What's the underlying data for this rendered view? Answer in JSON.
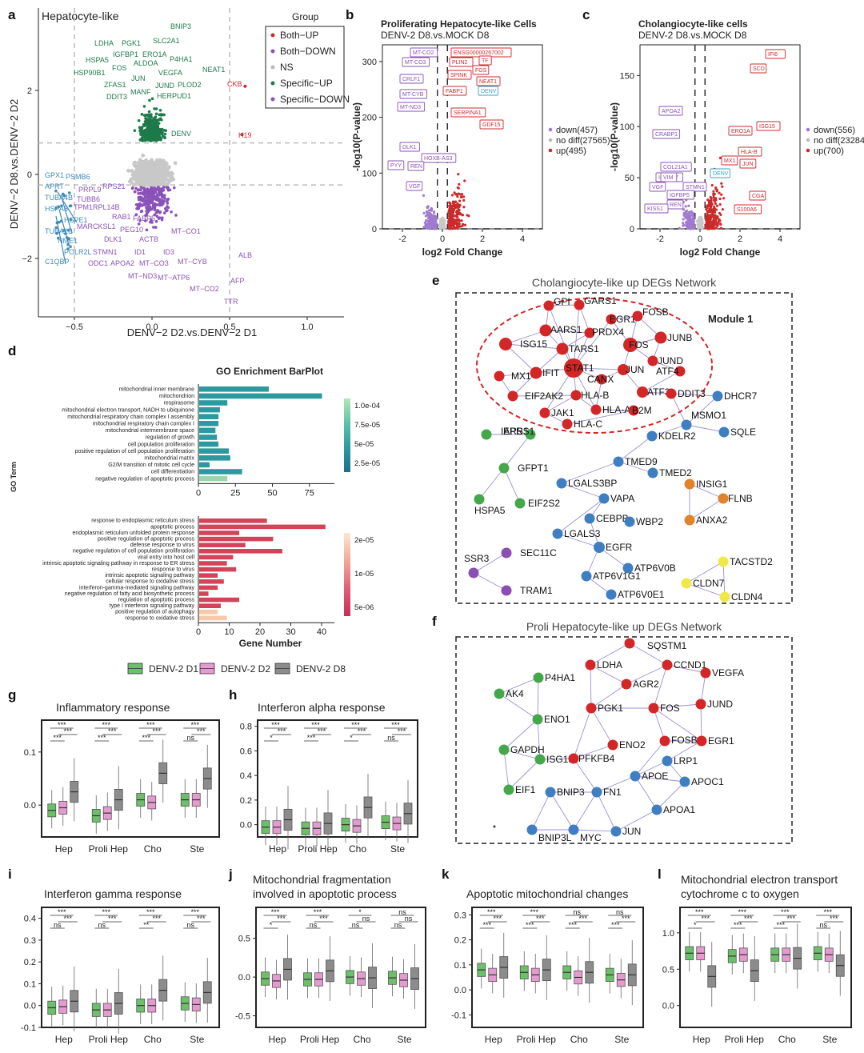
{
  "panel_letters": [
    "a",
    "b",
    "c",
    "d",
    "e",
    "f",
    "g",
    "h",
    "i",
    "j",
    "k",
    "l"
  ],
  "colors": {
    "up": "#cc2a2a",
    "down": "#8a52b8",
    "green": "#1d7a4a",
    "blue": "#3d8ab8",
    "grey": "#c8c8c8",
    "purple_node": "#8a4fb0",
    "green_node": "#44a74a",
    "blue_node": "#3f7fc1",
    "orange_node": "#e0832a",
    "yellow_node": "#f0e84a",
    "red_node": "#d32626",
    "teal": "#2a9aa0",
    "crimson": "#d3445a",
    "box_d1": "#6cc06a",
    "box_d2": "#e59ad0",
    "box_d8": "#8c8c8c"
  },
  "panel_a": {
    "title": "Hepatocyte-like",
    "xlabel": "DENV−2 D2.vs.DENV−2 D1",
    "ylabel": "DENV−2 D8.vs.DENV−2 D2",
    "xticks": [
      "−0.5",
      "0.0",
      "0.5",
      "1.0"
    ],
    "yticks": [
      "2",
      "0",
      "−2"
    ],
    "legend_title": "Group",
    "legend": [
      "Both−UP",
      "Both−DOWN",
      "NS",
      "Specific−UP",
      "Specific−DOWN"
    ],
    "labels_green": [
      "BNIP3",
      "LDHA",
      "PGK1",
      "SLC2A1",
      "IGFBP1",
      "ERO1A",
      "HSPA5",
      "P4HA1",
      "ALDOA",
      "HSP90B1",
      "FOS",
      "VEGFA",
      "NEAT1",
      "JUN",
      "JUND",
      "PLOD2",
      "ZFAS1",
      "DDIT3",
      "MANF",
      "HERPUD1",
      "DENV"
    ],
    "labels_red": [
      "CKB",
      "H19"
    ],
    "labels_blue": [
      "GPX1",
      "PSMB6",
      "APRT",
      "TUBA4B",
      "HSPA8",
      "HSPE1",
      "TUBA1B",
      "NME1",
      "C1QBP",
      "POLR2L"
    ],
    "labels_purple": [
      "PRPL9",
      "RPS21",
      "TUBB6",
      "TPM1",
      "RPL14B",
      "RAB1",
      "FABP5",
      "MARCKSL1",
      "PEG10",
      "DLK1",
      "STMN1",
      "ACTB",
      "ODC1",
      "APOA2",
      "ID1",
      "ID3",
      "MT−CO1",
      "MT−CO3",
      "MT−CYB",
      "MT−ND3",
      "MT−ATP6",
      "MT−CO2",
      "ALB",
      "AFP",
      "TTR"
    ]
  },
  "panel_b": {
    "title1": "Proliferating Hepatocyte-like Cells",
    "title2": "DENV-2 D8.vs.MOCK D8",
    "xlabel": "log2 Fold Change",
    "ylabel": "-log10(P-value)",
    "xticks": [
      "-2",
      "0",
      "2",
      "4"
    ],
    "yticks": [
      "0",
      "100",
      "200",
      "300"
    ],
    "legend": [
      "down(457)",
      "no diff(27565)",
      "up(495)"
    ],
    "labels_up": [
      "ENSG00000267002",
      "PLIN2",
      "TF",
      "SPINK",
      "FOS",
      "NEAT1",
      "FABP1",
      "SERPINA1",
      "GDF15"
    ],
    "labels_down": [
      "MT-CO2",
      "MT-CO3",
      "CRLF1",
      "MT-CYB",
      "MT-ND3",
      "DLK1",
      "HOXB-AS3",
      "PYY",
      "REN",
      "VGF"
    ],
    "labels_other": [
      "DENV"
    ]
  },
  "panel_c": {
    "title1": "Cholangiocyte-like cells",
    "title2": "DENV-2 D8.vs.MOCK D8",
    "xlabel": "log2 Fold Change",
    "ylabel": "-log10(P-value)",
    "xticks": [
      "-2",
      "0",
      "2",
      "4"
    ],
    "yticks": [
      "0",
      "50",
      "100",
      "150"
    ],
    "legend": [
      "down(556)",
      "no diff(23284)",
      "up(700)"
    ],
    "labels_up": [
      "IFI6",
      "SCD",
      "ERO1A",
      "ISG15",
      "HLA-B",
      "MX1",
      "JUN",
      "CGA",
      "S100A6"
    ],
    "labels_down": [
      "APOA2",
      "CRABP1",
      "COL21A1",
      "IGFBP7",
      "VIM",
      "VGF",
      "STMN1",
      "IGFBP5",
      "REN",
      "KISS1"
    ],
    "labels_other": [
      "DENV"
    ]
  },
  "panel_d": {
    "title": "GO Enrichment BarPlot",
    "ylabel": "GO Term",
    "xlabel": "Gene Number",
    "chart_data": [
      {
        "type": "bar",
        "orientation": "horizontal",
        "title": "GO Enrichment BarPlot",
        "xlabel": "",
        "ylabel": "GO Term",
        "xlim": [
          0,
          85
        ],
        "xticks": [
          "0",
          "25",
          "50",
          "75"
        ],
        "categories": [
          "mitochondrial inner membrane",
          "mitochondrion",
          "respirasome",
          "mitochondrial electron transport, NADH to ubiquinone",
          "mitochondrial respiratory chain complex I assembly",
          "mitochondrial respiratory chain complex I",
          "mitochondrial intermembrane space",
          "regulation of growth",
          "cell population proliferation",
          "positive regulation of cell population proliferation",
          "mitochondrial matrix",
          "G2/M transition of mitotic cell cycle",
          "cell differentiation",
          "negative regulation of apoptotic process"
        ],
        "values": [
          47,
          83,
          19,
          14,
          13,
          13,
          11,
          12,
          13,
          20,
          21,
          7,
          29,
          19
        ],
        "colorbar_ticks": [
          "1.0e-04",
          "7.5e-05",
          "5e-05",
          "2.5e-05"
        ]
      },
      {
        "type": "bar",
        "orientation": "horizontal",
        "xlabel": "Gene Number",
        "ylabel": "GO Term",
        "xlim": [
          0,
          45
        ],
        "xticks": [
          "0",
          "10",
          "20",
          "30",
          "40"
        ],
        "categories": [
          "response to endoplasmic reticulum stress",
          "apoptotic process",
          "endoplasmic reticulum unfolded protein response",
          "positive regulation of apoptotic process",
          "defense response to virus",
          "negative regulation of cell population proliferation",
          "viral entry into host cell",
          "intrinsic apoptotic signaling pathway in response to ER stress",
          "response to virus",
          "intrinsic apoptotic signaling pathway",
          "cellular response to oxidative stress",
          "interferon-gamma-mediated signaling pathway",
          "negative regulation of fatty acid biosynthetic process",
          "regulation of apoptotic process",
          "type I interferon signaling pathway",
          "positive regulation of autophagy",
          "response to oxidative stress"
        ],
        "values": [
          22,
          41,
          13,
          24,
          15,
          27,
          11,
          9,
          12,
          6,
          8,
          6,
          3,
          13,
          7,
          6,
          9
        ],
        "colorbar_ticks": [
          "2e-05",
          "1e-05",
          "5e-06"
        ]
      }
    ]
  },
  "panel_e": {
    "title": "Cholangiocyte-like up DEGs Network",
    "module": "Module 1",
    "nodes": [
      "GPI",
      "GARS1",
      "EGR1",
      "FOSB",
      "AARS1",
      "PRDX4",
      "JUNB",
      "ISG15",
      "TARS1",
      "FOS",
      "JUND",
      "MX1",
      "IFIT",
      "STAT1",
      "JUN",
      "ATF4",
      "CANX",
      "EIF2AK2",
      "HLA-B",
      "ATF3",
      "DDIT3",
      "JAK1",
      "HLA-A",
      "B2M",
      "HLA-C",
      "DHCR7",
      "MSMO1",
      "IARS1",
      "EPRS1",
      "KDELR2",
      "SQLE",
      "GFPT1",
      "TMED9",
      "TMED2",
      "HSPA5",
      "EIF2S2",
      "LGALS3BP",
      "INSIG1",
      "FLNB",
      "VAPA",
      "CEBPB",
      "WBP2",
      "ANXA2",
      "LGALS3",
      "EGFR",
      "SSR3",
      "SEC11C",
      "ATP6V0B",
      "TACSTD2",
      "ATP6V1G1",
      "TRAM1",
      "ATP6V0E1",
      "CLDN7",
      "CLDN4"
    ]
  },
  "panel_f": {
    "title": "Proli Hepatocyte-like up DEGs Network",
    "nodes": [
      "SQSTM1",
      "LDHA",
      "CCND1",
      "VEGFA",
      "P4HA1",
      "AGR2",
      "AK4",
      "PGK1",
      "FOS",
      "JUND",
      "ENO1",
      "GAPDH",
      "ISG15",
      "PFKFB4",
      "ENO2",
      "FOSB",
      "EGR1",
      "LRP1",
      "APOE",
      "APOC1",
      "EIF1",
      "BNIP3",
      "FN1",
      "APOA1",
      "BNIP3L",
      "MYC",
      "JUN"
    ]
  },
  "legend_boxes": [
    "DENV-2 D1",
    "DENV-2 D2",
    "DENV-2 D8"
  ],
  "box_panels": [
    {
      "letter": "g",
      "title": [
        "Inflammatory response"
      ],
      "yticks": [
        "0.1",
        "0.0"
      ],
      "categories": [
        "Hep",
        "Proli Hep",
        "Cho",
        "Ste"
      ],
      "chart_data": {
        "type": "box",
        "title": "Inflammatory response",
        "categories": [
          "Hep",
          "Proli Hep",
          "Cho",
          "Ste"
        ],
        "series": [
          {
            "name": "DENV-2 D1",
            "medians": [
              -0.01,
              -0.02,
              0.01,
              0.01
            ]
          },
          {
            "name": "DENV-2 D2",
            "medians": [
              -0.005,
              -0.015,
              0.005,
              0.01
            ]
          },
          {
            "name": "DENV-2 D8",
            "medians": [
              0.025,
              0.01,
              0.06,
              0.05
            ]
          }
        ],
        "ylim": [
          -0.06,
          0.16
        ]
      },
      "sig": [
        [
          "***",
          "***",
          "***"
        ],
        [
          "***",
          "***",
          "***"
        ],
        [
          "***",
          "***",
          "***"
        ],
        [
          "***",
          "***",
          "ns"
        ]
      ]
    },
    {
      "letter": "h",
      "title": [
        "Interferon alpha response"
      ],
      "yticks": [
        "0.8",
        "0.6",
        "0.4",
        "0.2",
        "0.0"
      ],
      "categories": [
        "Hep",
        "Proli Hep",
        "Cho",
        "Ste"
      ],
      "chart_data": {
        "type": "box",
        "title": "Interferon alpha response",
        "categories": [
          "Hep",
          "Proli Hep",
          "Cho",
          "Ste"
        ],
        "series": [
          {
            "name": "DENV-2 D1",
            "medians": [
              -0.02,
              -0.03,
              0.0,
              0.02
            ]
          },
          {
            "name": "DENV-2 D2",
            "medians": [
              -0.02,
              -0.03,
              -0.01,
              0.01
            ]
          },
          {
            "name": "DENV-2 D8",
            "medians": [
              0.04,
              0.01,
              0.14,
              0.09
            ]
          }
        ],
        "ylim": [
          -0.1,
          0.85
        ]
      },
      "sig": [
        [
          "***",
          "***",
          "*"
        ],
        [
          "***",
          "***",
          "***"
        ],
        [
          "***",
          "***",
          "*"
        ],
        [
          "***",
          "***",
          "ns"
        ]
      ]
    },
    {
      "letter": "i",
      "title": [
        "Interferon gamma response"
      ],
      "yticks": [
        "0.4",
        "0.3",
        "0.2",
        "0.1",
        "0.0",
        "-0.1"
      ],
      "categories": [
        "Hep",
        "Proli Hep",
        "Cho",
        "Ste"
      ],
      "chart_data": {
        "type": "box",
        "title": "Interferon gamma response",
        "categories": [
          "Hep",
          "Proli Hep",
          "Cho",
          "Ste"
        ],
        "series": [
          {
            "name": "DENV-2 D1",
            "medians": [
              -0.01,
              -0.02,
              0.0,
              0.01
            ]
          },
          {
            "name": "DENV-2 D2",
            "medians": [
              -0.005,
              -0.02,
              0.0,
              0.005
            ]
          },
          {
            "name": "DENV-2 D8",
            "medians": [
              0.02,
              0.01,
              0.07,
              0.06
            ]
          }
        ],
        "ylim": [
          -0.1,
          0.45
        ]
      },
      "sig": [
        [
          "***",
          "***",
          "ns"
        ],
        [
          "***",
          "***",
          "ns"
        ],
        [
          "***",
          "***",
          "**"
        ],
        [
          "***",
          "***",
          "ns"
        ]
      ]
    },
    {
      "letter": "j",
      "title": [
        "Mitochondrial fragmentation",
        "involved in apoptotic process"
      ],
      "yticks": [
        "0.5",
        "0.0",
        "-0.5"
      ],
      "categories": [
        "Hep",
        "Proli Hep",
        "Cho",
        "Ste"
      ],
      "chart_data": {
        "type": "box",
        "title": "Mitochondrial fragmentation involved in apoptotic process",
        "categories": [
          "Hep",
          "Proli Hep",
          "Cho",
          "Ste"
        ],
        "series": [
          {
            "name": "DENV-2 D1",
            "medians": [
              -0.02,
              -0.03,
              0.0,
              -0.01
            ]
          },
          {
            "name": "DENV-2 D2",
            "medians": [
              -0.05,
              -0.03,
              -0.02,
              -0.04
            ]
          },
          {
            "name": "DENV-2 D8",
            "medians": [
              0.1,
              0.08,
              -0.01,
              -0.02
            ]
          }
        ],
        "ylim": [
          -0.65,
          0.9
        ]
      },
      "sig": [
        [
          "***",
          "***",
          "*"
        ],
        [
          "***",
          "***",
          "ns"
        ],
        [
          "*",
          "ns",
          "ns"
        ],
        [
          "ns",
          "ns",
          "ns"
        ]
      ]
    },
    {
      "letter": "k",
      "title": [
        "Apoptotic mitochondrial changes"
      ],
      "yticks": [
        "0.3",
        "0.2",
        "0.1",
        "0.0",
        "-0.1"
      ],
      "categories": [
        "Hep",
        "Proli Hep",
        "Cho",
        "Ste"
      ],
      "chart_data": {
        "type": "box",
        "title": "Apoptotic mitochondrial changes",
        "categories": [
          "Hep",
          "Proli Hep",
          "Cho",
          "Ste"
        ],
        "series": [
          {
            "name": "DENV-2 D1",
            "medians": [
              0.08,
              0.07,
              0.07,
              0.06
            ]
          },
          {
            "name": "DENV-2 D2",
            "medians": [
              0.06,
              0.06,
              0.05,
              0.04
            ]
          },
          {
            "name": "DENV-2 D8",
            "medians": [
              0.09,
              0.08,
              0.07,
              0.06
            ]
          }
        ],
        "ylim": [
          -0.15,
          0.33
        ]
      },
      "sig": [
        [
          "***",
          "***",
          "***"
        ],
        [
          "***",
          "***",
          "***"
        ],
        [
          "ns",
          "***",
          "***"
        ],
        [
          "ns",
          "***",
          "***"
        ]
      ]
    },
    {
      "letter": "l",
      "title": [
        "Mitochondrial electron transport",
        "cytochrome c to oxygen"
      ],
      "yticks": [
        "1.0",
        "0.5",
        "0.0"
      ],
      "categories": [
        "Hep",
        "Proli Hep",
        "Cho",
        "Ste"
      ],
      "chart_data": {
        "type": "box",
        "title": "Mitochondrial electron transport cytochrome c to oxygen",
        "categories": [
          "Hep",
          "Proli Hep",
          "Cho",
          "Ste"
        ],
        "series": [
          {
            "name": "DENV-2 D1",
            "medians": [
              0.72,
              0.68,
              0.7,
              0.72
            ]
          },
          {
            "name": "DENV-2 D2",
            "medians": [
              0.72,
              0.7,
              0.7,
              0.7
            ]
          },
          {
            "name": "DENV-2 D8",
            "medians": [
              0.4,
              0.48,
              0.65,
              0.55
            ]
          }
        ],
        "ylim": [
          -0.3,
          1.35
        ]
      },
      "sig": [
        [
          "***",
          "***",
          "*"
        ],
        [
          "***",
          "***",
          "***"
        ],
        [
          "***",
          "***",
          "***"
        ],
        [
          "***",
          "***",
          "ns"
        ]
      ]
    }
  ]
}
